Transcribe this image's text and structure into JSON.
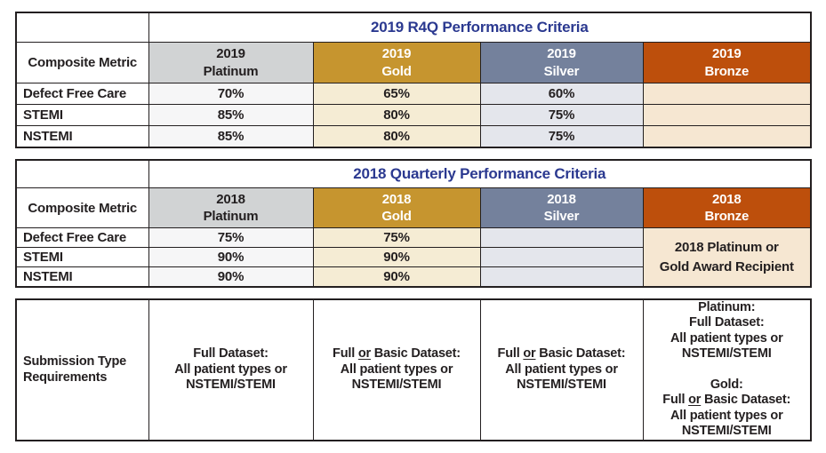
{
  "colors": {
    "navy": "#2B3990",
    "ink": "#231F20",
    "border": "#231F20",
    "platinum": "#D1D3D4",
    "gold": "#C6952F",
    "silver": "#74819C",
    "bronze": "#BD4F0C",
    "platinum-light": "#F6F6F7",
    "gold-light": "#F5ECD4",
    "silver-light": "#E4E6EC",
    "bronze-light": "#F6E7D2"
  },
  "table_2019": {
    "title": "2019 R4Q Performance Criteria",
    "metric_header": "Composite Metric",
    "columns": {
      "platinum": [
        "2019",
        "Platinum"
      ],
      "gold": [
        "2019",
        "Gold"
      ],
      "silver": [
        "2019",
        "Silver"
      ],
      "bronze": [
        "2019",
        "Bronze"
      ]
    },
    "rows": [
      {
        "label": "Defect Free Care",
        "platinum": "70%",
        "gold": "65%",
        "silver": "60%",
        "bronze": ""
      },
      {
        "label": "STEMI",
        "platinum": "85%",
        "gold": "80%",
        "silver": "75%",
        "bronze": ""
      },
      {
        "label": "NSTEMI",
        "platinum": "85%",
        "gold": "80%",
        "silver": "75%",
        "bronze": ""
      }
    ]
  },
  "table_2018": {
    "title": "2018 Quarterly Performance Criteria",
    "metric_header": "Composite Metric",
    "columns": {
      "platinum": [
        "2018",
        "Platinum"
      ],
      "gold": [
        "2018",
        "Gold"
      ],
      "silver": [
        "2018",
        "Silver"
      ],
      "bronze": [
        "2018",
        "Bronze"
      ]
    },
    "rows": [
      {
        "label": "Defect Free Care",
        "platinum": "75%",
        "gold": "75%",
        "silver": ""
      },
      {
        "label": "STEMI",
        "platinum": "90%",
        "gold": "90%",
        "silver": ""
      },
      {
        "label": "NSTEMI",
        "platinum": "90%",
        "gold": "90%",
        "silver": ""
      }
    ],
    "bronze_note": [
      "2018 Platinum or",
      "Gold Award Recipient"
    ]
  },
  "submission": {
    "label": [
      "Submission Type",
      "Requirements"
    ],
    "platinum": [
      "Full Dataset:",
      "All patient types or",
      "NSTEMI/STEMI"
    ],
    "gold": [
      "Full ~or~ Basic Dataset:",
      "All patient types or",
      "NSTEMI/STEMI"
    ],
    "silver": [
      "Full ~or~ Basic Dataset:",
      "All patient types or",
      "NSTEMI/STEMI"
    ],
    "bronze": [
      "Platinum:",
      "Full Dataset:",
      "All patient types or",
      "NSTEMI/STEMI",
      "",
      "Gold:",
      "Full ~or~ Basic Dataset:",
      "All patient types or",
      "NSTEMI/STEMI"
    ]
  }
}
